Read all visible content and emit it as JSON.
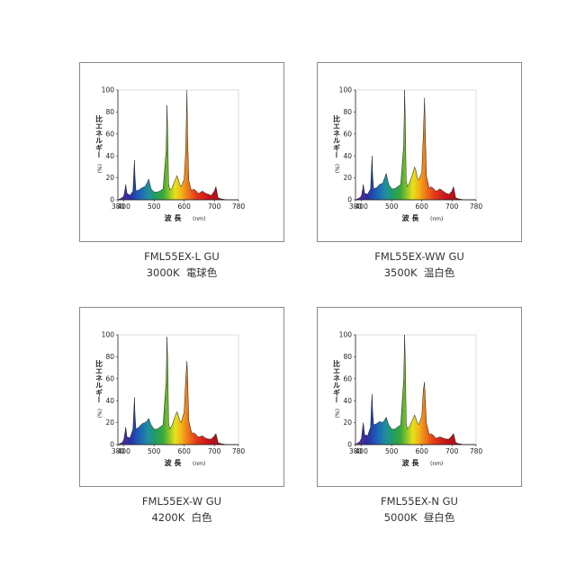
{
  "chart_data": [
    {
      "type": "area",
      "model": "FML55EX-L GU",
      "color_temp": "3000K",
      "light_color": "電球色",
      "xlabel": "波 長",
      "xunit": "(nm)",
      "ylabel": "比エネルギー",
      "yunit": "(%)",
      "xlim": [
        380,
        780
      ],
      "ylim": [
        0,
        100
      ],
      "xticks": [
        380,
        400,
        500,
        600,
        700,
        780
      ],
      "yticks": [
        0,
        20,
        40,
        60,
        80,
        100
      ],
      "x": [
        380,
        395,
        400,
        404,
        406,
        410,
        420,
        430,
        433,
        435,
        437,
        440,
        450,
        460,
        470,
        478,
        482,
        490,
        500,
        510,
        520,
        530,
        540,
        543,
        546,
        548,
        552,
        560,
        570,
        576,
        580,
        585,
        590,
        600,
        605,
        609,
        611,
        615,
        620,
        625,
        630,
        640,
        645,
        650,
        660,
        670,
        680,
        690,
        700,
        705,
        708,
        712,
        720,
        740,
        760,
        780
      ],
      "y": [
        0,
        2,
        4,
        10,
        14,
        6,
        4,
        8,
        26,
        36,
        20,
        8,
        9,
        11,
        12,
        16,
        19,
        10,
        7,
        7,
        8,
        10,
        45,
        86,
        50,
        15,
        9,
        11,
        18,
        22,
        19,
        14,
        12,
        19,
        45,
        100,
        60,
        18,
        12,
        8,
        10,
        8,
        6,
        6,
        8,
        6,
        5,
        4,
        8,
        12,
        8,
        2,
        1,
        0,
        0,
        0
      ]
    },
    {
      "type": "area",
      "model": "FML55EX-WW GU",
      "color_temp": "3500K",
      "light_color": "温白色",
      "xlabel": "波 長",
      "xunit": "(nm)",
      "ylabel": "比エネルギー",
      "yunit": "(%)",
      "xlim": [
        380,
        780
      ],
      "ylim": [
        0,
        100
      ],
      "xticks": [
        380,
        400,
        500,
        600,
        700,
        780
      ],
      "yticks": [
        0,
        20,
        40,
        60,
        80,
        100
      ],
      "x": [
        380,
        395,
        400,
        404,
        406,
        410,
        420,
        430,
        433,
        435,
        437,
        440,
        450,
        460,
        470,
        478,
        482,
        490,
        500,
        510,
        520,
        530,
        540,
        543,
        546,
        548,
        552,
        560,
        570,
        576,
        580,
        585,
        590,
        600,
        605,
        609,
        611,
        615,
        620,
        625,
        630,
        640,
        645,
        650,
        660,
        670,
        680,
        690,
        700,
        705,
        708,
        712,
        720,
        740,
        760,
        780
      ],
      "y": [
        0,
        2,
        4,
        10,
        14,
        6,
        5,
        10,
        28,
        40,
        22,
        10,
        11,
        14,
        15,
        21,
        24,
        14,
        10,
        10,
        12,
        14,
        50,
        100,
        60,
        18,
        12,
        16,
        24,
        30,
        27,
        20,
        18,
        25,
        60,
        93,
        70,
        22,
        16,
        10,
        12,
        10,
        8,
        8,
        10,
        8,
        6,
        5,
        8,
        12,
        8,
        2,
        1,
        0,
        0,
        0
      ]
    },
    {
      "type": "area",
      "model": "FML55EX-W GU",
      "color_temp": "4200K",
      "light_color": "白色",
      "xlabel": "波 長",
      "xunit": "(nm)",
      "ylabel": "比エネルギー",
      "yunit": "(%)",
      "xlim": [
        380,
        780
      ],
      "ylim": [
        0,
        100
      ],
      "xticks": [
        380,
        400,
        500,
        600,
        700,
        780
      ],
      "yticks": [
        0,
        20,
        40,
        60,
        80,
        100
      ],
      "x": [
        380,
        395,
        400,
        404,
        406,
        410,
        420,
        430,
        433,
        435,
        437,
        440,
        450,
        460,
        470,
        478,
        482,
        490,
        500,
        510,
        520,
        530,
        540,
        543,
        546,
        548,
        552,
        560,
        570,
        576,
        580,
        585,
        590,
        600,
        605,
        609,
        611,
        615,
        620,
        625,
        630,
        640,
        645,
        650,
        660,
        670,
        680,
        690,
        700,
        705,
        708,
        712,
        720,
        740,
        760,
        780
      ],
      "y": [
        0,
        2,
        5,
        12,
        16,
        7,
        6,
        14,
        32,
        43,
        26,
        14,
        16,
        19,
        20,
        22,
        24,
        18,
        14,
        14,
        16,
        18,
        58,
        98,
        65,
        20,
        14,
        18,
        26,
        30,
        27,
        22,
        20,
        30,
        60,
        76,
        64,
        22,
        16,
        10,
        11,
        9,
        7,
        7,
        8,
        6,
        5,
        5,
        8,
        10,
        7,
        2,
        1,
        0,
        0,
        0
      ]
    },
    {
      "type": "area",
      "model": "FML55EX-N GU",
      "color_temp": "5000K",
      "light_color": "昼白色",
      "xlabel": "波 長",
      "xunit": "(nm)",
      "ylabel": "比エネルギー",
      "yunit": "(%)",
      "xlim": [
        380,
        780
      ],
      "ylim": [
        0,
        100
      ],
      "xticks": [
        380,
        400,
        500,
        600,
        700,
        780
      ],
      "yticks": [
        0,
        20,
        40,
        60,
        80,
        100
      ],
      "x": [
        380,
        395,
        400,
        404,
        406,
        410,
        420,
        430,
        433,
        435,
        437,
        440,
        450,
        460,
        470,
        478,
        482,
        490,
        500,
        510,
        520,
        530,
        540,
        543,
        546,
        548,
        552,
        560,
        570,
        576,
        580,
        585,
        590,
        600,
        605,
        609,
        611,
        615,
        620,
        625,
        630,
        640,
        645,
        650,
        660,
        670,
        680,
        690,
        700,
        705,
        708,
        712,
        720,
        740,
        760,
        780
      ],
      "y": [
        0,
        3,
        6,
        16,
        20,
        9,
        8,
        16,
        36,
        46,
        30,
        18,
        19,
        21,
        20,
        23,
        25,
        18,
        14,
        14,
        16,
        18,
        60,
        100,
        66,
        20,
        14,
        17,
        23,
        27,
        24,
        20,
        18,
        26,
        50,
        57,
        44,
        20,
        14,
        9,
        10,
        8,
        6,
        6,
        7,
        6,
        5,
        5,
        8,
        10,
        7,
        2,
        1,
        0,
        0,
        0
      ]
    }
  ]
}
